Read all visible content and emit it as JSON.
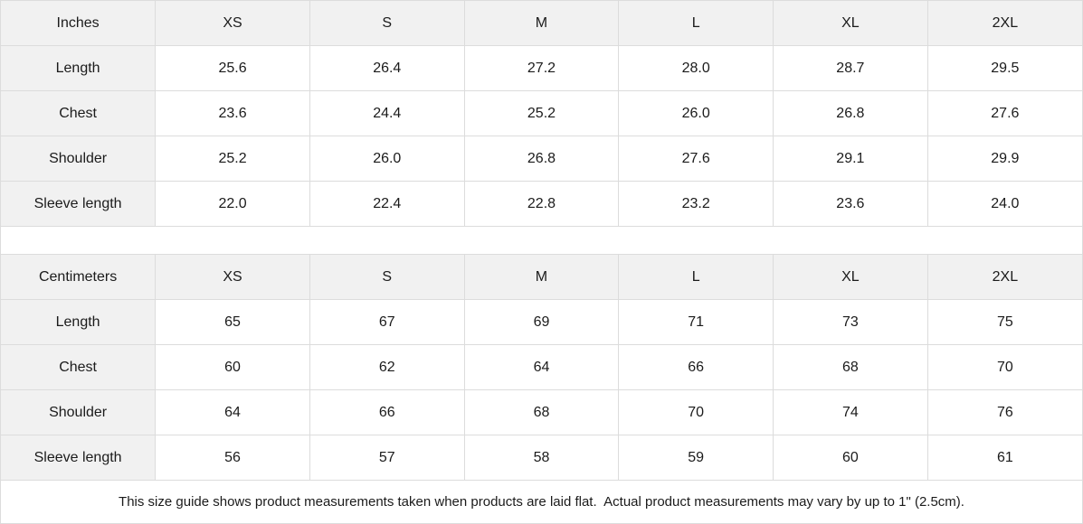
{
  "theme": {
    "border_color": "#dcdcdc",
    "header_bg": "#f1f1f1",
    "cell_bg": "#ffffff",
    "text_color": "#1b1b1b"
  },
  "size_guide": {
    "tables": [
      {
        "id": "inches",
        "unit_label": "Inches",
        "columns": [
          "XS",
          "S",
          "M",
          "L",
          "XL",
          "2XL"
        ],
        "rows": [
          {
            "label": "Length",
            "values": [
              "25.6",
              "26.4",
              "27.2",
              "28.0",
              "28.7",
              "29.5"
            ]
          },
          {
            "label": "Chest",
            "values": [
              "23.6",
              "24.4",
              "25.2",
              "26.0",
              "26.8",
              "27.6"
            ]
          },
          {
            "label": "Shoulder",
            "values": [
              "25.2",
              "26.0",
              "26.8",
              "27.6",
              "29.1",
              "29.9"
            ]
          },
          {
            "label": "Sleeve length",
            "values": [
              "22.0",
              "22.4",
              "22.8",
              "23.2",
              "23.6",
              "24.0"
            ]
          }
        ]
      },
      {
        "id": "centimeters",
        "unit_label": "Centimeters",
        "columns": [
          "XS",
          "S",
          "M",
          "L",
          "XL",
          "2XL"
        ],
        "rows": [
          {
            "label": "Length",
            "values": [
              "65",
              "67",
              "69",
              "71",
              "73",
              "75"
            ]
          },
          {
            "label": "Chest",
            "values": [
              "60",
              "62",
              "64",
              "66",
              "68",
              "70"
            ]
          },
          {
            "label": "Shoulder",
            "values": [
              "64",
              "66",
              "68",
              "70",
              "74",
              "76"
            ]
          },
          {
            "label": "Sleeve length",
            "values": [
              "56",
              "57",
              "58",
              "59",
              "60",
              "61"
            ]
          }
        ]
      }
    ],
    "footer_note": "This size guide shows product measurements taken when products are laid flat.  Actual product measurements may vary by up to 1\" (2.5cm)."
  }
}
